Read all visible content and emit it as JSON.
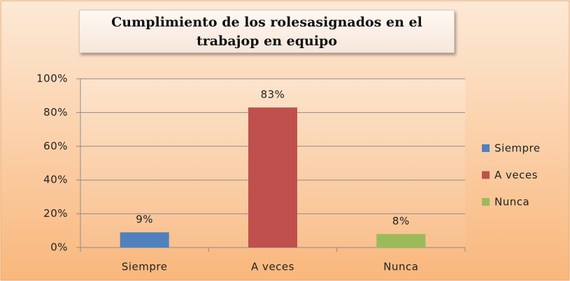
{
  "chart_data": {
    "type": "bar",
    "title": "Cumplimiento de los rolesasignados en el trabajop en equipo",
    "categories": [
      "Siempre",
      "A veces",
      "Nunca"
    ],
    "values": [
      9,
      83,
      8
    ],
    "value_labels": [
      "9%",
      "83%",
      "8%"
    ],
    "colors": [
      "#4f81bd",
      "#c0504d",
      "#9bbb59"
    ],
    "ylim": [
      0,
      100
    ],
    "yticks": [
      {
        "value": 0,
        "label": "0%"
      },
      {
        "value": 20,
        "label": "20%"
      },
      {
        "value": 40,
        "label": "40%"
      },
      {
        "value": 60,
        "label": "60%"
      },
      {
        "value": 80,
        "label": "80%"
      },
      {
        "value": 100,
        "label": "100%"
      }
    ],
    "grid": true,
    "legend": "right"
  }
}
